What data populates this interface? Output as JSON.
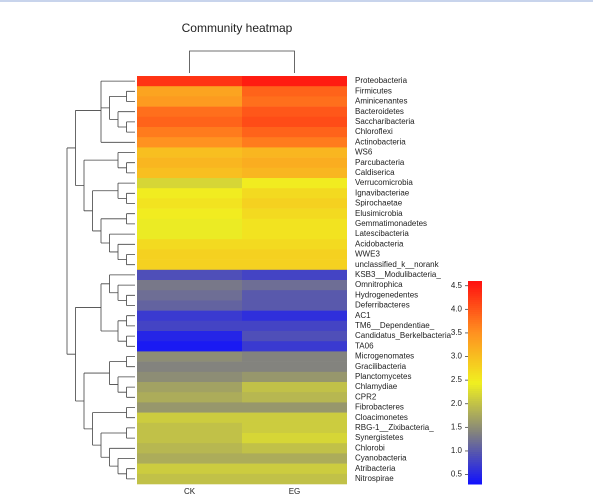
{
  "chart_data": {
    "type": "heatmap",
    "title": "Community heatmap",
    "categories": [
      "CK",
      "EG"
    ],
    "rows": [
      "Proteobacteria",
      "Firmicutes",
      "Aminicenantes",
      "Bacteroidetes",
      "Saccharibacteria",
      "Chloroflexi",
      "Actinobacteria",
      "WS6",
      "Parcubacteria",
      "Caldiserica",
      "Verrucomicrobia",
      "Ignavibacteriae",
      "Spirochaetae",
      "Elusimicrobia",
      "Gemmatimonadetes",
      "Latescibacteria",
      "Acidobacteria",
      "WWE3",
      "unclassified_k__norank",
      "KSB3__Modulibacteria_",
      "Omnitrophica",
      "Hydrogenedentes",
      "Deferribacteres",
      "AC1",
      "TM6__Dependentiae_",
      "Candidatus_Berkelbacteria",
      "TA06",
      "Microgenomates",
      "Gracilibacteria",
      "Planctomycetes",
      "Chlamydiae",
      "CPR2",
      "Fibrobacteres",
      "Cloacimonetes",
      "RBG-1__Zixibacteria_",
      "Synergistetes",
      "Chlorobi",
      "Cyanobacteria",
      "Atribacteria",
      "Nitrospirae"
    ],
    "values": [
      [
        4.3,
        4.5
      ],
      [
        3.3,
        3.9
      ],
      [
        3.4,
        3.8
      ],
      [
        3.8,
        4.0
      ],
      [
        3.9,
        4.1
      ],
      [
        3.7,
        3.9
      ],
      [
        3.5,
        3.7
      ],
      [
        3.0,
        3.1
      ],
      [
        3.1,
        3.2
      ],
      [
        3.0,
        3.1
      ],
      [
        2.2,
        2.5
      ],
      [
        2.5,
        2.7
      ],
      [
        2.6,
        2.8
      ],
      [
        2.5,
        2.7
      ],
      [
        2.4,
        2.6
      ],
      [
        2.4,
        2.6
      ],
      [
        2.7,
        2.7
      ],
      [
        2.8,
        2.8
      ],
      [
        2.8,
        2.8
      ],
      [
        0.9,
        0.8
      ],
      [
        1.3,
        1.2
      ],
      [
        1.2,
        1.0
      ],
      [
        1.1,
        1.0
      ],
      [
        0.7,
        0.6
      ],
      [
        0.8,
        0.8
      ],
      [
        0.5,
        0.9
      ],
      [
        0.4,
        0.7
      ],
      [
        1.5,
        1.4
      ],
      [
        1.4,
        1.4
      ],
      [
        1.5,
        1.6
      ],
      [
        1.7,
        2.0
      ],
      [
        1.8,
        1.9
      ],
      [
        1.6,
        1.6
      ],
      [
        2.1,
        2.1
      ],
      [
        2.0,
        2.1
      ],
      [
        2.0,
        2.2
      ],
      [
        1.9,
        2.0
      ],
      [
        1.8,
        1.8
      ],
      [
        2.1,
        2.1
      ],
      [
        2.0,
        2.0
      ]
    ],
    "colors": [
      "#1010ff",
      "#808080",
      "#f0f020",
      "#ff9020",
      "#ff1010"
    ],
    "zlim": [
      0.3,
      4.6
    ],
    "zticks": [
      0.5,
      1.0,
      1.5,
      2.0,
      2.5,
      3.0,
      3.5,
      4.0,
      4.5
    ]
  }
}
